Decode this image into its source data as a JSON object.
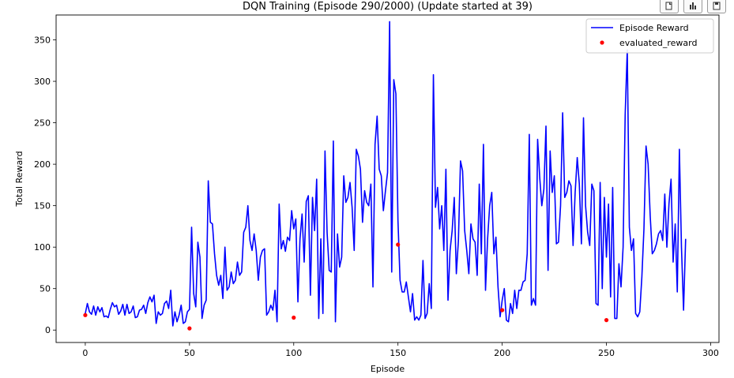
{
  "toolbar": {
    "items": [
      {
        "icon": "copy-icon"
      },
      {
        "icon": "chart-icon"
      },
      {
        "icon": "save-icon"
      }
    ]
  },
  "chart_data": {
    "type": "line",
    "title": "DQN Training (Episode 290/2000) (Update started at 39)",
    "xlabel": "Episode",
    "ylabel": "Total Reward",
    "xlim": [
      -14,
      304
    ],
    "ylim": [
      -15,
      380
    ],
    "xticks": [
      0,
      50,
      100,
      150,
      200,
      250,
      300
    ],
    "yticks": [
      0,
      50,
      100,
      150,
      200,
      250,
      300,
      350
    ],
    "grid": false,
    "legend_position": "top-right",
    "series": [
      {
        "name": "Episode Reward",
        "type": "line",
        "color": "#0000ff",
        "values": [
          20,
          32,
          22,
          19,
          29,
          18,
          28,
          22,
          27,
          16,
          17,
          15,
          25,
          33,
          28,
          30,
          19,
          23,
          31,
          18,
          31,
          20,
          22,
          29,
          15,
          16,
          24,
          25,
          30,
          20,
          33,
          40,
          34,
          42,
          8,
          22,
          18,
          20,
          32,
          35,
          26,
          48,
          5,
          22,
          10,
          18,
          30,
          8,
          10,
          22,
          25,
          124,
          44,
          28,
          106,
          88,
          14,
          30,
          36,
          180,
          130,
          128,
          92,
          66,
          54,
          66,
          38,
          100,
          48,
          52,
          70,
          56,
          60,
          82,
          66,
          70,
          118,
          124,
          150,
          108,
          96,
          116,
          96,
          60,
          88,
          96,
          98,
          18,
          22,
          30,
          24,
          48,
          10,
          152,
          98,
          108,
          95,
          112,
          108,
          144,
          122,
          134,
          34,
          110,
          140,
          82,
          155,
          162,
          42,
          160,
          120,
          182,
          14,
          110,
          20,
          216,
          118,
          72,
          70,
          228,
          10,
          116,
          76,
          88,
          186,
          154,
          160,
          178,
          148,
          96,
          218,
          210,
          194,
          130,
          168,
          154,
          150,
          176,
          52,
          224,
          258,
          194,
          186,
          144,
          168,
          190,
          372,
          70,
          302,
          285,
          132,
          60,
          46,
          46,
          58,
          40,
          22,
          44,
          12,
          16,
          12,
          18,
          84,
          14,
          20,
          56,
          26,
          308,
          148,
          172,
          122,
          150,
          96,
          194,
          36,
          96,
          120,
          160,
          68,
          108,
          204,
          192,
          120,
          96,
          68,
          128,
          110,
          106,
          66,
          176,
          92,
          224,
          48,
          110,
          150,
          166,
          92,
          112,
          52,
          16,
          36,
          50,
          12,
          10,
          32,
          20,
          48,
          26,
          48,
          48,
          58,
          60,
          92,
          236,
          30,
          38,
          30,
          230,
          184,
          150,
          170,
          246,
          72,
          216,
          166,
          186,
          104,
          106,
          150,
          262,
          160,
          166,
          180,
          174,
          102,
          166,
          208,
          176,
          104,
          256,
          150,
          118,
          102,
          176,
          168,
          32,
          30,
          178,
          50,
          160,
          88,
          152,
          40,
          172,
          14,
          14,
          80,
          52,
          100,
          260,
          338,
          124,
          96,
          110,
          20,
          16,
          22,
          64,
          122,
          222,
          200,
          138,
          92,
          96,
          104,
          116,
          120,
          108,
          164,
          100,
          152,
          182,
          82,
          128,
          46,
          218,
          100,
          24,
          110
        ]
      },
      {
        "name": "evaluated_reward",
        "type": "scatter",
        "color": "#ff0000",
        "points": [
          [
            0,
            18
          ],
          [
            50,
            2
          ],
          [
            100,
            15
          ],
          [
            150,
            103
          ],
          [
            200,
            24
          ],
          [
            250,
            12
          ]
        ]
      }
    ]
  }
}
